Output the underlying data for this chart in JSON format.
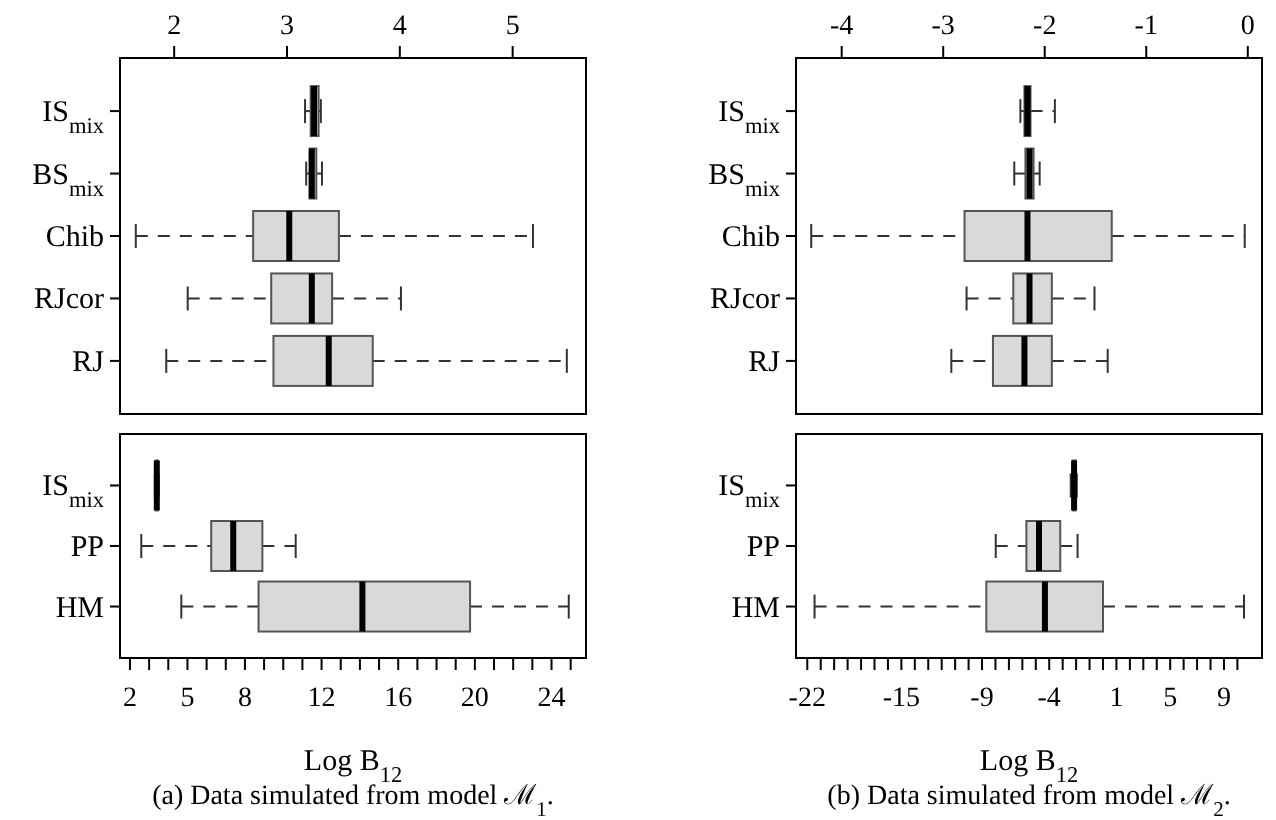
{
  "chart_data": [
    {
      "type": "box",
      "orientation": "horizontal",
      "color": "#d9d9d9",
      "categories": [
        "IS$_{mix}$",
        "BS$_{mix}$",
        "Chib",
        "RJcor",
        "RJ"
      ],
      "xlim": [
        1.52,
        5.65
      ],
      "xticks": [
        2,
        3,
        4,
        5
      ],
      "boxes": [
        {
          "low": 3.16,
          "q1": 3.21,
          "median": 3.24,
          "q3": 3.28,
          "high": 3.3
        },
        {
          "low": 3.17,
          "q1": 3.2,
          "median": 3.22,
          "q3": 3.26,
          "high": 3.31
        },
        {
          "low": 1.66,
          "q1": 2.7,
          "median": 3.02,
          "q3": 3.46,
          "high": 5.18
        },
        {
          "low": 2.12,
          "q1": 2.86,
          "median": 3.22,
          "q3": 3.4,
          "high": 4.01
        },
        {
          "low": 1.93,
          "q1": 2.88,
          "median": 3.37,
          "q3": 3.76,
          "high": 5.48
        }
      ]
    },
    {
      "type": "box",
      "orientation": "horizontal",
      "color": "#d9d9d9",
      "categories": [
        "IS$_{mix}$",
        "PP",
        "HM"
      ],
      "xlabel": "Log B$_{12}$",
      "annotations": [
        "(a) Data simulated from model ℳ$_{1}$."
      ],
      "xlim": [
        1.48,
        25.8
      ],
      "xticks": [
        2,
        {
          "value": 3,
          "label": null
        },
        {
          "value": 4,
          "label": null
        },
        5,
        {
          "value": 6,
          "label": null
        },
        {
          "value": 7,
          "label": null
        },
        8,
        {
          "value": 9,
          "label": null
        },
        {
          "value": 10,
          "label": null
        },
        {
          "value": 11,
          "label": null
        },
        12,
        {
          "value": 13,
          "label": null
        },
        {
          "value": 14,
          "label": null
        },
        {
          "value": 15,
          "label": null
        },
        16,
        {
          "value": 17,
          "label": null
        },
        {
          "value": 18,
          "label": null
        },
        {
          "value": 19,
          "label": null
        },
        20,
        {
          "value": 21,
          "label": null
        },
        {
          "value": 22,
          "label": null
        },
        {
          "value": 23,
          "label": null
        },
        24,
        {
          "value": 25,
          "label": null
        }
      ],
      "boxes": [
        {
          "low": 3.3,
          "q1": 3.35,
          "median": 3.4,
          "q3": 3.45,
          "high": 3.5
        },
        {
          "low": 2.59,
          "q1": 6.24,
          "median": 7.39,
          "q3": 8.91,
          "high": 10.65
        },
        {
          "low": 4.68,
          "q1": 8.71,
          "median": 14.13,
          "q3": 19.75,
          "high": 24.9
        }
      ]
    },
    {
      "type": "box",
      "orientation": "horizontal",
      "color": "#d9d9d9",
      "categories": [
        "IS$_{mix}$",
        "BS$_{mix}$",
        "Chib",
        "RJcor",
        "RJ"
      ],
      "xlim": [
        -4.45,
        0.14
      ],
      "xticks": [
        -4,
        -3,
        -2,
        -1,
        0
      ],
      "boxes": [
        {
          "low": -2.24,
          "q1": -2.2,
          "median": -2.17,
          "q3": -2.14,
          "high": -1.9
        },
        {
          "low": -2.3,
          "q1": -2.19,
          "median": -2.15,
          "q3": -2.11,
          "high": -2.05
        },
        {
          "low": -4.3,
          "q1": -2.79,
          "median": -2.17,
          "q3": -1.34,
          "high": -0.03
        },
        {
          "low": -2.77,
          "q1": -2.31,
          "median": -2.15,
          "q3": -1.93,
          "high": -1.51
        },
        {
          "low": -2.92,
          "q1": -2.51,
          "median": -2.2,
          "q3": -1.93,
          "high": -1.38
        }
      ]
    },
    {
      "type": "box",
      "orientation": "horizontal",
      "color": "#d9d9d9",
      "categories": [
        "IS$_{mix}$",
        "PP",
        "HM"
      ],
      "xlabel": "Log B$_{12}$",
      "annotations": [
        "(b) Data simulated from model ℳ$_{2}$."
      ],
      "xlim": [
        -22.84,
        11.83
      ],
      "xticks": [
        -22,
        {
          "value": -21,
          "label": null
        },
        {
          "value": -20,
          "label": null
        },
        {
          "value": -19,
          "label": null
        },
        {
          "value": -18,
          "label": null
        },
        {
          "value": -17,
          "label": null
        },
        {
          "value": -16,
          "label": null
        },
        -15,
        {
          "value": -14,
          "label": null
        },
        {
          "value": -13,
          "label": null
        },
        {
          "value": -12,
          "label": null
        },
        {
          "value": -11,
          "label": null
        },
        {
          "value": -10,
          "label": null
        },
        -9,
        {
          "value": -8,
          "label": null
        },
        {
          "value": -7,
          "label": null
        },
        {
          "value": -6,
          "label": null
        },
        {
          "value": -5,
          "label": null
        },
        -4,
        {
          "value": -3,
          "label": null
        },
        {
          "value": -2,
          "label": null
        },
        {
          "value": -1,
          "label": null
        },
        {
          "value": 0,
          "label": null
        },
        1,
        {
          "value": 2,
          "label": null
        },
        {
          "value": 3,
          "label": null
        },
        {
          "value": 4,
          "label": null
        },
        5,
        {
          "value": 6,
          "label": null
        },
        {
          "value": 7,
          "label": null
        },
        {
          "value": 8,
          "label": null
        },
        9,
        {
          "value": 10,
          "label": null
        }
      ],
      "boxes": [
        {
          "low": -2.4,
          "q1": -2.25,
          "median": -2.15,
          "q3": -2.05,
          "high": -1.95
        },
        {
          "low": -7.98,
          "q1": -5.7,
          "median": -4.76,
          "q3": -3.18,
          "high": -1.89
        },
        {
          "low": -21.46,
          "q1": -8.68,
          "median": -4.32,
          "q3": 0,
          "high": 10.49
        }
      ]
    }
  ]
}
